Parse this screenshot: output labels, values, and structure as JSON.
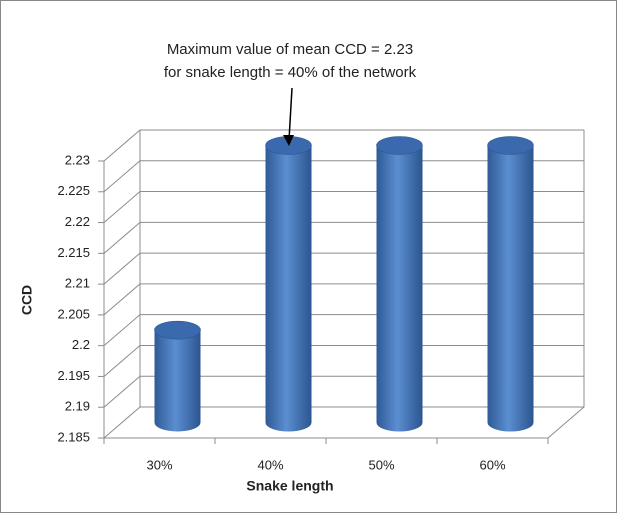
{
  "chart_data": {
    "type": "bar",
    "annotation": [
      "Maximum value of mean CCD = 2.23",
      "for snake length = 40%  of the network"
    ],
    "x_label": "Snake length",
    "y_label": "CCD",
    "categories": [
      "30%",
      "40%",
      "50%",
      "60%"
    ],
    "values": [
      2.2,
      2.23,
      2.23,
      2.23
    ],
    "color": "#4a7cc0",
    "ylim": [
      2.185,
      2.23
    ],
    "yticks": [
      2.185,
      2.19,
      2.195,
      2.2,
      2.205,
      2.21,
      2.215,
      2.22,
      2.225,
      2.23
    ],
    "grid": true
  }
}
